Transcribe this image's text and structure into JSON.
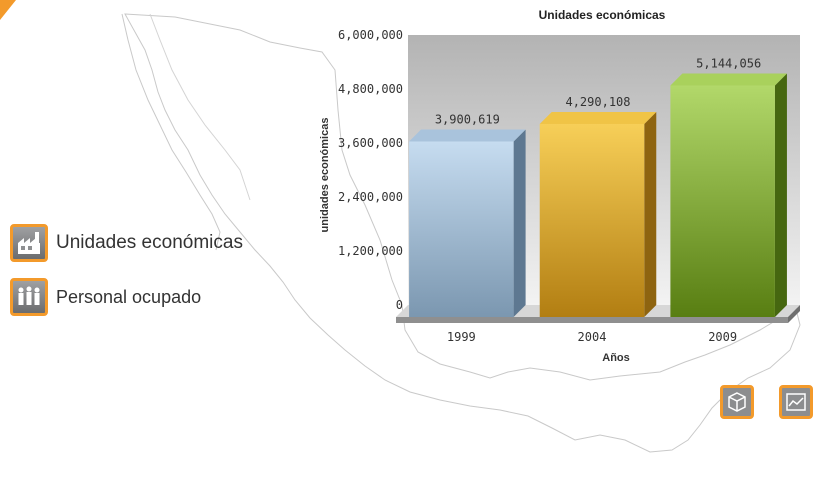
{
  "menu": {
    "items": [
      {
        "label": "Unidades económicas",
        "icon": "factory-icon"
      },
      {
        "label": "Personal ocupado",
        "icon": "people-icon"
      }
    ]
  },
  "chart_controls": [
    {
      "icon": "cube-3d-icon"
    },
    {
      "icon": "line-chart-icon"
    }
  ],
  "colors": {
    "accent": "#f39a2b",
    "bar_1999": "#9fbad3",
    "bar_2004": "#e0ad2f",
    "bar_2009": "#7fae2d"
  },
  "chart_data": {
    "type": "bar",
    "title": "Unidades económicas",
    "xlabel": "Años",
    "ylabel": "unidades económicas",
    "categories": [
      "1999",
      "2004",
      "2009"
    ],
    "values": [
      3900619,
      4290108,
      5144056
    ],
    "value_labels": [
      "3,900,619",
      "4,290,108",
      "5,144,056"
    ],
    "yticks": [
      "0",
      "1,200,000",
      "2,400,000",
      "3,600,000",
      "4,800,000",
      "6,000,000"
    ],
    "ylim": [
      0,
      6000000
    ],
    "grid": false,
    "three_d": true
  }
}
